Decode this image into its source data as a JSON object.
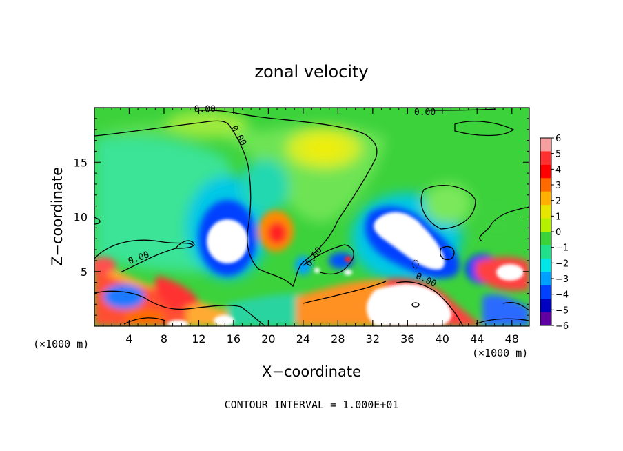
{
  "chart_data": {
    "type": "heatmap",
    "title": "zonal velocity",
    "xlabel": "X−coordinate",
    "ylabel": "Z−coordinate",
    "x_unit_left": "(×1000 m)",
    "x_unit_right": "(×1000 m)",
    "footer": "CONTOUR INTERVAL = 1.000E+01",
    "x_ticks": [
      "4",
      "8",
      "12",
      "16",
      "20",
      "24",
      "28",
      "32",
      "36",
      "40",
      "44",
      "48"
    ],
    "x_tick_values": [
      4,
      8,
      12,
      16,
      20,
      24,
      28,
      32,
      36,
      40,
      44,
      48
    ],
    "y_ticks": [
      "5",
      "10",
      "15"
    ],
    "y_tick_values": [
      5,
      10,
      15
    ],
    "xlim": [
      0,
      50
    ],
    "ylim": [
      0,
      20
    ],
    "colorbar": {
      "ticks": [
        "6",
        "5",
        "4",
        "3",
        "2",
        "1",
        "0",
        "−1",
        "−2",
        "−3",
        "−4",
        "−5",
        "−6"
      ],
      "range": [
        -6,
        6
      ],
      "colors": [
        "#f4a0a0",
        "#ff3030",
        "#ff0000",
        "#ff6a00",
        "#ffb000",
        "#e6e600",
        "#b4f000",
        "#3cd23c",
        "#20e08c",
        "#00e6e6",
        "#00a0ff",
        "#0040ff",
        "#0000c0",
        "#6000a0"
      ]
    },
    "contour_labels": [
      {
        "text": "0.00",
        "x": 12.7,
        "y": 19.6,
        "angle": 0
      },
      {
        "text": "0.00",
        "x": 38.0,
        "y": 19.3,
        "angle": 0
      },
      {
        "text": "0.00",
        "x": 16.3,
        "y": 17.3,
        "angle": 60
      },
      {
        "text": "0.00",
        "x": 5.2,
        "y": 6.0,
        "angle": -20
      },
      {
        "text": "0.00",
        "x": 25.5,
        "y": 6.2,
        "angle": -55
      },
      {
        "text": "0.00",
        "x": 38.0,
        "y": 4.0,
        "angle": 25
      }
    ],
    "features": [
      {
        "kind": "max",
        "x": 21,
        "y": 8.5,
        "value": 5.5
      },
      {
        "kind": "min",
        "x": 15.2,
        "y": 8.3,
        "value": -6.5
      },
      {
        "kind": "min",
        "x": 36.5,
        "y": 8.5,
        "value": -6.5
      },
      {
        "kind": "max",
        "x": 26.5,
        "y": 17,
        "value": 1.8
      },
      {
        "kind": "min",
        "x": 20,
        "y": 12,
        "value": -1.2
      }
    ]
  }
}
